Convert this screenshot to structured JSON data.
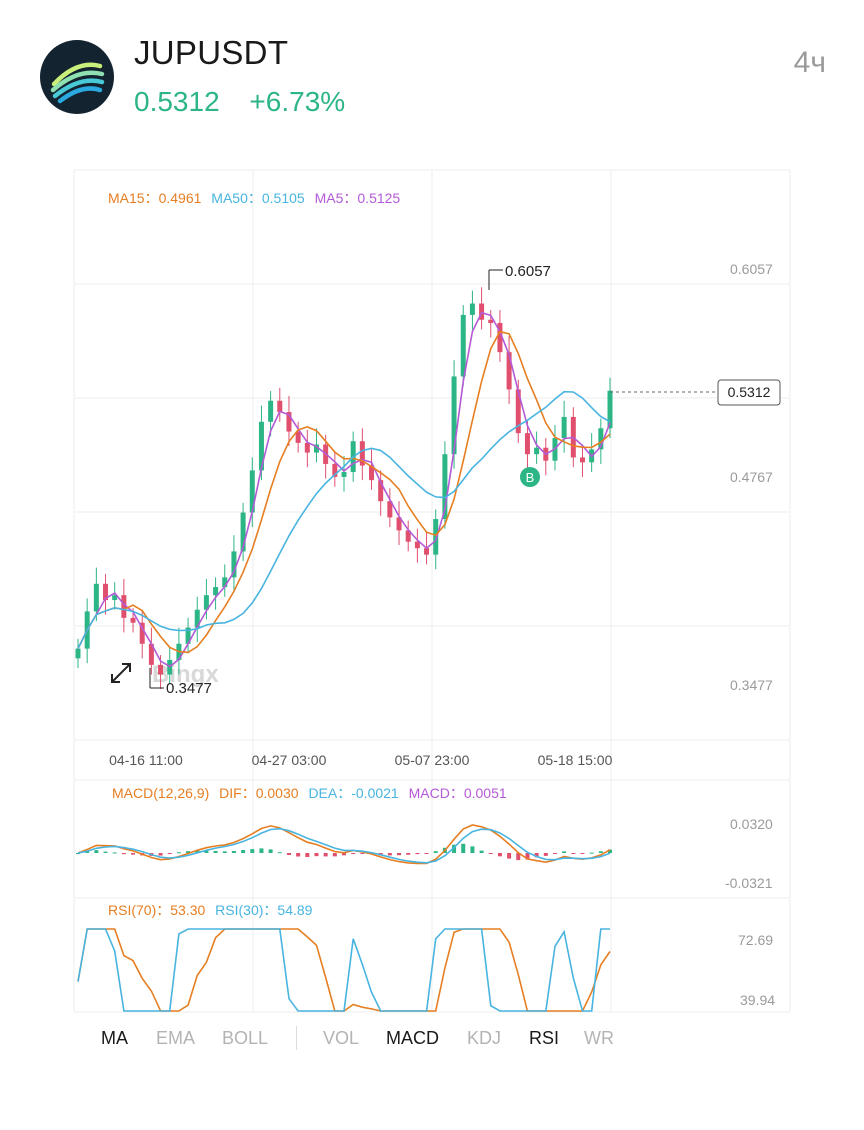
{
  "header": {
    "symbol": "JUPUSDT",
    "price": "0.5312",
    "change": "+6.73%",
    "interval": "4ч"
  },
  "colors": {
    "up": "#2cb585",
    "down": "#e04f6d",
    "ma15": "#e67e22",
    "ma50": "#48b4e0",
    "ma5": "#b45ad6",
    "grid": "#eeeeee",
    "axis_text": "#9a9a9a"
  },
  "main_legend": {
    "ma15_label": "MA15：",
    "ma15_value": "0.4961",
    "ma50_label": "MA50：",
    "ma50_value": "0.5105",
    "ma5_label": "MA5：",
    "ma5_value": "0.5125"
  },
  "macd_legend": {
    "title": "MACD(12,26,9)",
    "dif_label": "DIF：",
    "dif_value": "0.0030",
    "dea_label": "DEA：",
    "dea_value": "-0.0021",
    "macd_label": "MACD：",
    "macd_value": "0.0051"
  },
  "rsi_legend": {
    "rsi70_label": "RSI(70)：",
    "rsi70_value": "53.30",
    "rsi30_label": "RSI(30)：",
    "rsi30_value": "54.89"
  },
  "watermark": "Bingx",
  "tabs_main": [
    {
      "label": "MA",
      "active": true
    },
    {
      "label": "EMA",
      "active": false
    },
    {
      "label": "BOLL",
      "active": false
    }
  ],
  "tabs_sub": [
    {
      "label": "VOL",
      "active": false
    },
    {
      "label": "MACD",
      "active": true
    },
    {
      "label": "KDJ",
      "active": false
    },
    {
      "label": "RSI",
      "active": true
    },
    {
      "label": "WR",
      "active": false
    }
  ],
  "chart_data": {
    "type": "candlestick",
    "price_axis_labels": [
      "0.6057",
      "0.4767",
      "0.3477"
    ],
    "price_range": [
      0.3477,
      0.6057
    ],
    "time_labels": [
      "04-16 11:00",
      "04-27 03:00",
      "05-07 23:00",
      "05-18 15:00"
    ],
    "high_label": "0.6057",
    "low_label": "0.3477",
    "last_price": "0.5312",
    "buy_marker": "B",
    "macd_axis_labels": [
      "0.0320",
      "-0.0321"
    ],
    "macd_range": [
      -0.0321,
      0.032
    ],
    "rsi_axis_labels": [
      "72.69",
      "39.94"
    ],
    "rsi_range": [
      39.94,
      72.69
    ],
    "closes": [
      0.372,
      0.395,
      0.412,
      0.402,
      0.405,
      0.391,
      0.388,
      0.375,
      0.362,
      0.356,
      0.365,
      0.375,
      0.385,
      0.396,
      0.405,
      0.41,
      0.416,
      0.432,
      0.456,
      0.482,
      0.512,
      0.525,
      0.518,
      0.506,
      0.499,
      0.493,
      0.498,
      0.486,
      0.478,
      0.481,
      0.5,
      0.485,
      0.476,
      0.463,
      0.453,
      0.445,
      0.438,
      0.434,
      0.43,
      0.452,
      0.492,
      0.54,
      0.578,
      0.585,
      0.575,
      0.573,
      0.555,
      0.532,
      0.505,
      0.492,
      0.496,
      0.488,
      0.502,
      0.515,
      0.49,
      0.487,
      0.495,
      0.508,
      0.5312
    ]
  }
}
